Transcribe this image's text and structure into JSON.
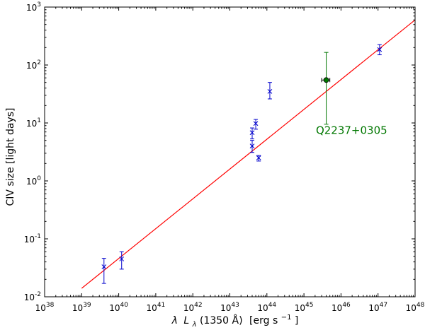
{
  "chart_data": {
    "type": "scatter",
    "xlabel": "λ L_λ(1350 Å) [erg s⁻¹]",
    "xlabel_parts": {
      "lambda": "λ",
      "L": "L",
      "sub": "λ",
      "paren": "(1350 Å)",
      "unit_pre": "[erg s",
      "unit_exp": "−1",
      "unit_post": "]"
    },
    "ylabel": "CIV size [light days]",
    "xscale": "log",
    "yscale": "log",
    "xlim": [
      1e+38,
      1e+48
    ],
    "ylim": [
      0.01,
      1000
    ],
    "grid": false,
    "x_ticks": [
      {
        "base": "10",
        "exp": "38"
      },
      {
        "base": "10",
        "exp": "39"
      },
      {
        "base": "10",
        "exp": "40"
      },
      {
        "base": "10",
        "exp": "41"
      },
      {
        "base": "10",
        "exp": "42"
      },
      {
        "base": "10",
        "exp": "43"
      },
      {
        "base": "10",
        "exp": "44"
      },
      {
        "base": "10",
        "exp": "45"
      },
      {
        "base": "10",
        "exp": "46"
      },
      {
        "base": "10",
        "exp": "47"
      },
      {
        "base": "10",
        "exp": "48"
      }
    ],
    "y_ticks": [
      {
        "base": "10",
        "exp": "-2"
      },
      {
        "base": "10",
        "exp": "-1"
      },
      {
        "base": "10",
        "exp": "0"
      },
      {
        "base": "10",
        "exp": "1"
      },
      {
        "base": "10",
        "exp": "2"
      },
      {
        "base": "10",
        "exp": "3"
      }
    ],
    "series": [
      {
        "marker": "x",
        "color": "#0000cc",
        "points": [
          {
            "x": 4e+39,
            "y": 0.033,
            "ylo": 0.017,
            "yhi": 0.046
          },
          {
            "x": 1.2e+40,
            "y": 0.045,
            "ylo": 0.03,
            "yhi": 0.06
          },
          {
            "x": 4e+43,
            "y": 6.8,
            "ylo": 5.3,
            "yhi": 8.2
          },
          {
            "x": 4e+43,
            "y": 4.0,
            "ylo": 3.1,
            "yhi": 5.0
          },
          {
            "x": 5e+43,
            "y": 9.8,
            "ylo": 7.8,
            "yhi": 11.5
          },
          {
            "x": 6e+43,
            "y": 2.5,
            "ylo": 2.2,
            "yhi": 2.75
          },
          {
            "x": 1.2e+44,
            "y": 35,
            "ylo": 26,
            "yhi": 50
          },
          {
            "x": 1.1e+47,
            "y": 185,
            "ylo": 150,
            "yhi": 225
          }
        ]
      },
      {
        "marker": "circle",
        "color": "#007700",
        "points": [
          {
            "x": 4e+45,
            "y": 55,
            "ylo": 9.5,
            "yhi": 165,
            "xlo": 3e+45,
            "xhi": 5e+45
          }
        ]
      }
    ],
    "fit_line": {
      "color": "#ff0000",
      "x": [
        1e+39,
        1e+48
      ],
      "y": [
        0.014,
        600
      ]
    },
    "annotations": [
      {
        "text": "Q2237+0305",
        "x": 2.1e+45,
        "y": 6.5,
        "color": "#007700"
      }
    ]
  }
}
